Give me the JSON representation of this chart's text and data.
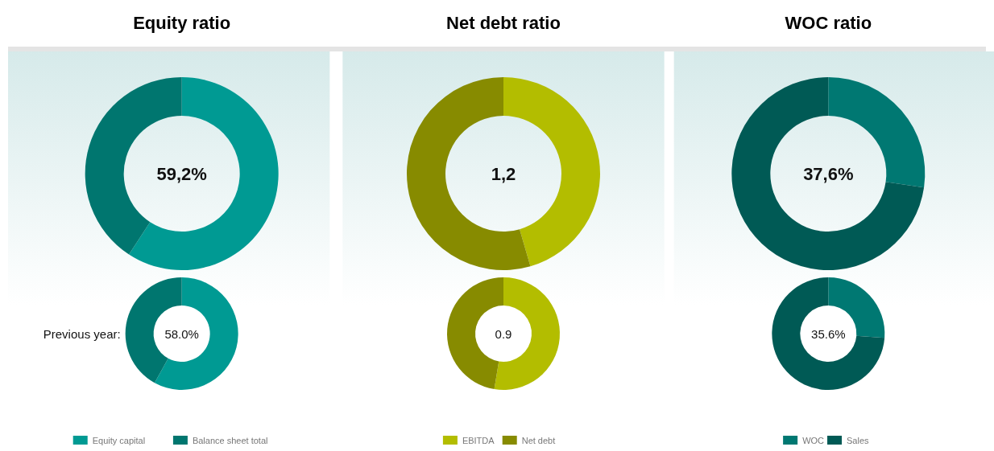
{
  "chart_data": [
    {
      "type": "donut",
      "title": "Equity ratio",
      "categories": [
        "Equity capital",
        "Balance sheet total"
      ],
      "colors": [
        "#009a93",
        "#00766f"
      ],
      "series": [
        {
          "values": [
            59.2,
            40.8
          ]
        },
        {
          "values": [
            58.0,
            42.0
          ]
        }
      ],
      "annotations": [
        "59,2%",
        "58.0%",
        "Previous year:"
      ],
      "legend": "bottom"
    },
    {
      "type": "donut",
      "title": "Net debt ratio",
      "categories": [
        "EBITDA",
        "Net debt"
      ],
      "colors": [
        "#b3bd00",
        "#878b00"
      ],
      "series": [
        {
          "values": [
            45.5,
            54.5
          ]
        },
        {
          "values": [
            52.6,
            47.4
          ]
        }
      ],
      "annotations": [
        "1,2",
        "0.9"
      ],
      "legend": "bottom"
    },
    {
      "type": "donut",
      "title": "WOC ratio",
      "categories": [
        "WOC",
        "Sales"
      ],
      "colors": [
        "#007872",
        "#005a55"
      ],
      "series": [
        {
          "values": [
            27.3,
            72.7
          ]
        },
        {
          "values": [
            26.2,
            73.8
          ]
        }
      ],
      "annotations": [
        "37,6%",
        "35.6%"
      ],
      "legend": "bottom"
    }
  ]
}
